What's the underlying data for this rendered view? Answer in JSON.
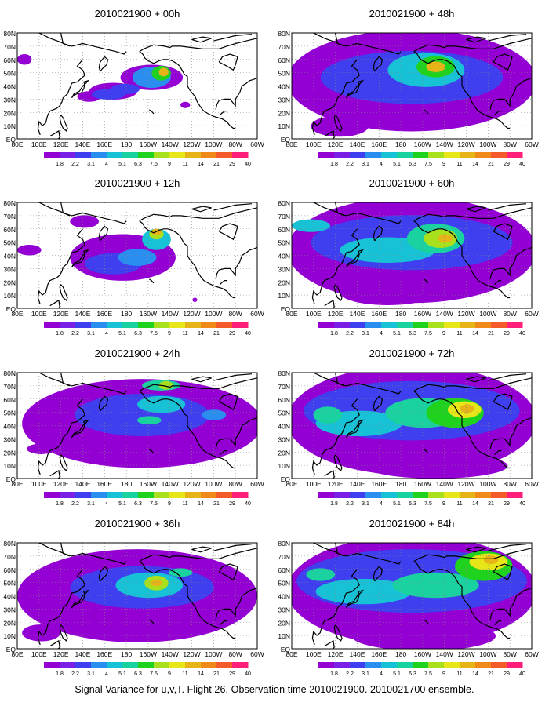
{
  "figure": {
    "caption": "Signal Variance for u,v,T. Flight 26. Observation time 2010021900. 2010021700 ensemble.",
    "panels": [
      {
        "title": "2010021900 + 00h",
        "column": "left",
        "row": 0
      },
      {
        "title": "2010021900 + 12h",
        "column": "left",
        "row": 1
      },
      {
        "title": "2010021900 + 24h",
        "column": "left",
        "row": 2
      },
      {
        "title": "2010021900 + 36h",
        "column": "left",
        "row": 3
      },
      {
        "title": "2010021900 + 48h",
        "column": "right",
        "row": 0
      },
      {
        "title": "2010021900 + 60h",
        "column": "right",
        "row": 1
      },
      {
        "title": "2010021900 + 72h",
        "column": "right",
        "row": 2
      },
      {
        "title": "2010021900 + 84h",
        "column": "right",
        "row": 3
      }
    ],
    "lon_labels": [
      "80E",
      "100E",
      "120E",
      "140E",
      "160E",
      "180",
      "160W",
      "140W",
      "120W",
      "100W",
      "80W",
      "60W"
    ],
    "lat_labels": [
      "EQ",
      "10N",
      "20N",
      "30N",
      "40N",
      "50N",
      "60N",
      "70N",
      "80N"
    ],
    "colorbar": {
      "labels": [
        "1.8",
        "2.2",
        "3.1",
        "4",
        "5.1",
        "6.3",
        "7.5",
        "9",
        "11",
        "14",
        "21",
        "29",
        "40"
      ],
      "colors": [
        "#9400d3",
        "#7a1fe6",
        "#3f3fef",
        "#2a8ef0",
        "#17c2d6",
        "#19d2a0",
        "#1ed21e",
        "#a8e01e",
        "#e6e619",
        "#e6b419",
        "#ef8a19",
        "#f55a2a",
        "#ff1e7a"
      ]
    },
    "land_color": "#000000",
    "grid": "dotted"
  }
}
